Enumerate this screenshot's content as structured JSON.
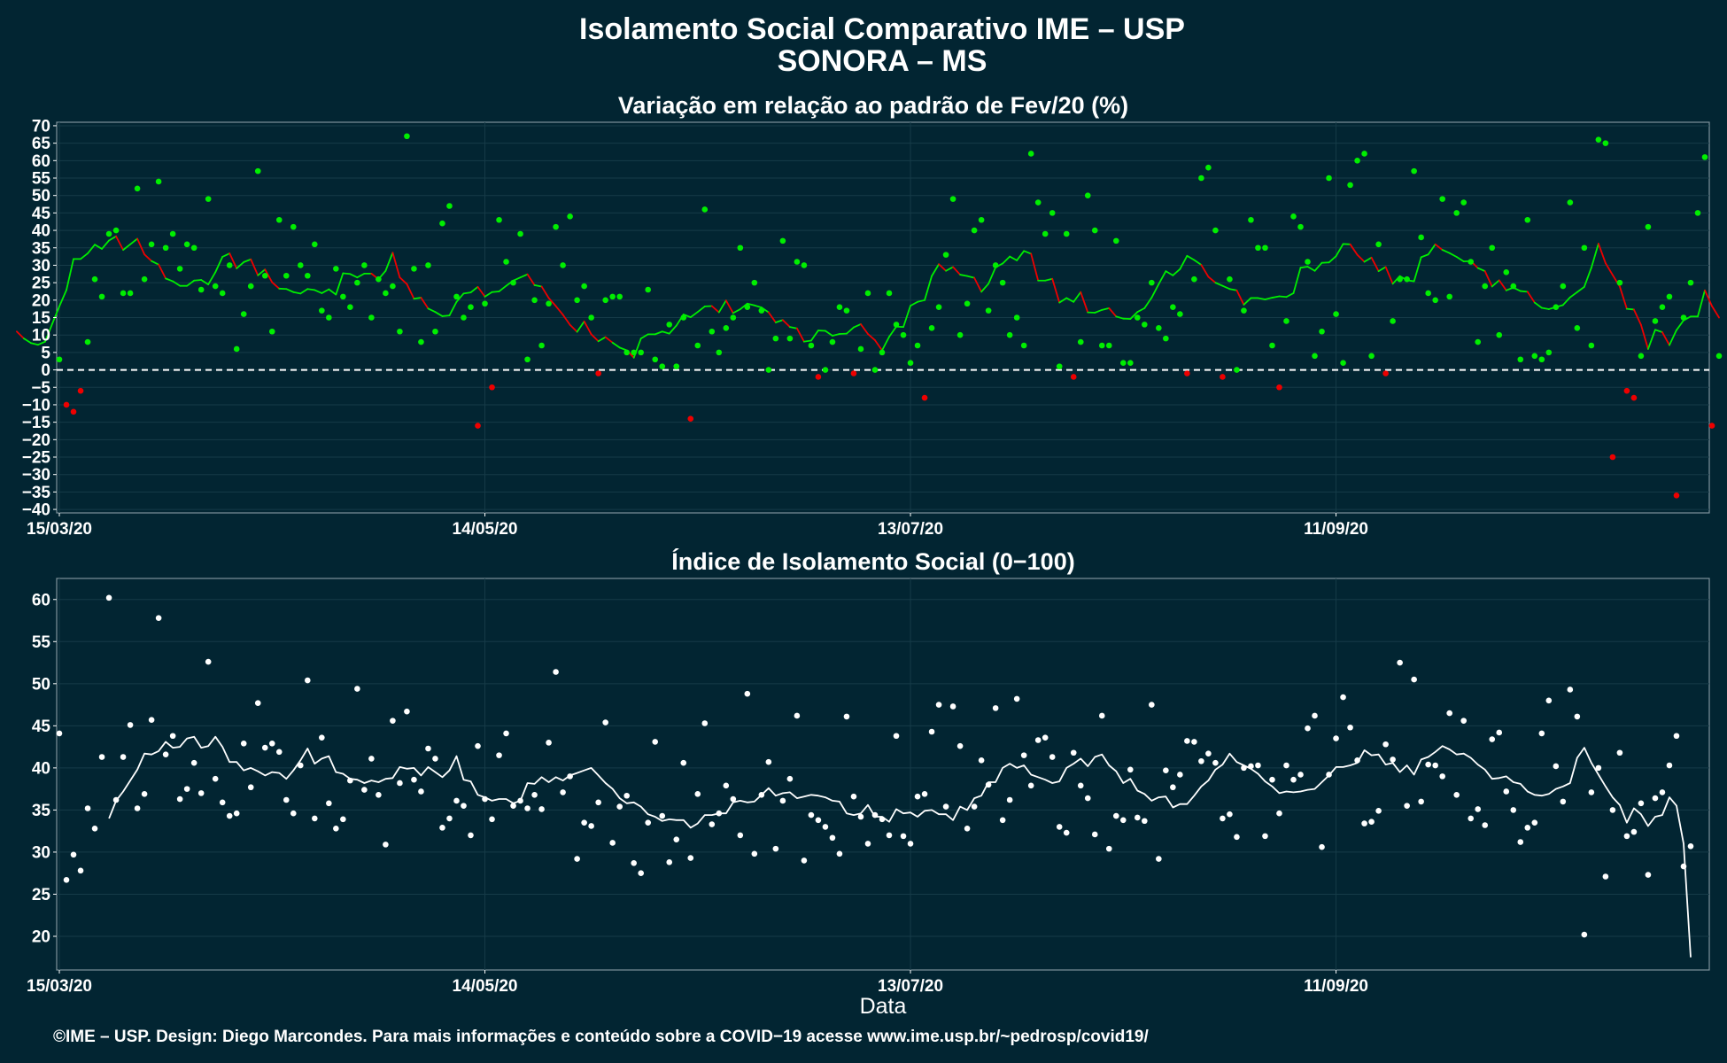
{
  "title": "Isolamento Social Comparativo IME – USP",
  "subtitle": "SONORA – MS",
  "caption": "©IME – USP. Design: Diego Marcondes. Para mais informações e conteúdo sobre a COVID−19 acesse www.ime.usp.br/~pedrosp/covid19/",
  "colors": {
    "background": "#022532",
    "panel_border": "#7f939b",
    "grid": "#163b48",
    "positive": "#00ee00",
    "negative": "#ee0000",
    "index": "#ffffff",
    "zero_line": "#ffffff"
  },
  "chart_data": [
    {
      "type": "scatter",
      "title": "Variação em relação ao padrão de Fev/20 (%)",
      "xlabel": "",
      "ylabel": "",
      "x_type": "date",
      "x_start": "2020-03-15",
      "x_end": "2020-11-02",
      "x_ticks": [
        {
          "date": "2020-03-15",
          "label": "15/03/20"
        },
        {
          "date": "2020-05-14",
          "label": "14/05/20"
        },
        {
          "date": "2020-07-13",
          "label": "13/07/20"
        },
        {
          "date": "2020-09-11",
          "label": "11/09/20"
        }
      ],
      "y_ticks": [
        70,
        65,
        60,
        55,
        50,
        45,
        40,
        35,
        30,
        25,
        20,
        15,
        10,
        5,
        0,
        -5,
        -10,
        -15,
        -20,
        -25,
        -30,
        -35,
        -40
      ],
      "ylim": [
        -41,
        71
      ],
      "grid": true,
      "legend": "none",
      "reference_line": 0,
      "series": [
        {
          "kind": "points",
          "values": [
            3,
            -10,
            -12,
            -6,
            8,
            26,
            21,
            39,
            40,
            22,
            22,
            52,
            26,
            36,
            54,
            35,
            39,
            29,
            36,
            35,
            23,
            49,
            24,
            22,
            30,
            6,
            16,
            24,
            57,
            27,
            11,
            43,
            27,
            41,
            30,
            27,
            36,
            17,
            15,
            29,
            21,
            18,
            25,
            30,
            15,
            26,
            22,
            24,
            11,
            67,
            29,
            8,
            30,
            11,
            42,
            47,
            21,
            15,
            18,
            -16,
            19,
            -5,
            43,
            31,
            25,
            39,
            3,
            20,
            7,
            19,
            41,
            30,
            44,
            20,
            24,
            15,
            -1,
            20,
            21,
            21,
            5,
            5,
            5,
            23,
            3,
            1,
            13,
            1,
            15,
            -14,
            7,
            46,
            11,
            5,
            12,
            15,
            35,
            18,
            25,
            17,
            0,
            9,
            37,
            9,
            31,
            30,
            7,
            -2,
            0,
            8,
            18,
            17,
            -1,
            6,
            22,
            0,
            5,
            22,
            13,
            10,
            2,
            7,
            -8,
            12,
            18,
            33,
            49,
            10,
            19,
            40,
            43,
            17,
            30,
            25,
            10,
            15,
            7,
            62,
            48,
            39,
            45,
            1,
            39,
            -2,
            8,
            50,
            40,
            7,
            7,
            37,
            2,
            2,
            15,
            13,
            25,
            12,
            9,
            18,
            16,
            -1,
            26,
            55,
            58,
            40,
            -2,
            26,
            0,
            17,
            43,
            35,
            35,
            7,
            -5,
            14,
            44,
            41,
            31,
            4,
            11,
            55,
            16,
            2,
            53,
            60,
            62,
            4,
            36,
            -1,
            14,
            26,
            26,
            57,
            38,
            22,
            20,
            49,
            21,
            45,
            48,
            31,
            8,
            24,
            35,
            10,
            28,
            24,
            3,
            43,
            4,
            3,
            5,
            18,
            24,
            48,
            12,
            35,
            7,
            66,
            65,
            -25,
            25,
            -6,
            -8,
            4,
            41,
            14,
            18,
            21,
            -36,
            15,
            25,
            45,
            61,
            -16,
            4
          ]
        },
        {
          "kind": "moving_average",
          "values": [
            11.0,
            9.0,
            7.7,
            7.2,
            8.1,
            13.2,
            18.2,
            22.9,
            31.8,
            31.8,
            33.4,
            35.9,
            34.7,
            37.1,
            38.3,
            34.4,
            36.0,
            37.6,
            33.1,
            31.2,
            30.2,
            26.2,
            25.4,
            24.1,
            24.1,
            25.6,
            25.8,
            24.5,
            28.0,
            32.4,
            33.4,
            29.1,
            30.9,
            31.7,
            27.1,
            28.8,
            25.1,
            23.3,
            23.2,
            22.3,
            21.9,
            23.2,
            22.9,
            22.0,
            23.1,
            21.6,
            27.7,
            27.5,
            26.5,
            27.6,
            27.6,
            26.0,
            28.4,
            33.6,
            26.5,
            24.6,
            20.4,
            20.7,
            17.6,
            16.6,
            15.4,
            15.6,
            19.5,
            21.9,
            22.2,
            23.8,
            21.0,
            22.3,
            22.5,
            24.1,
            25.6,
            26.5,
            27.4,
            24.3,
            23.9,
            20.6,
            18.3,
            15.8,
            12.9,
            10.9,
            13.9,
            10.2,
            8.2,
            9.4,
            7.8,
            6.4,
            5.6,
            3.5,
            9.0,
            10.2,
            10.2,
            11.0,
            10.4,
            12.7,
            15.9,
            15.1,
            16.6,
            18.2,
            18.3,
            16.5,
            19.9,
            16.3,
            17.4,
            19.0,
            18.5,
            17.9,
            16.5,
            13.6,
            14.3,
            12.3,
            11.9,
            8.1,
            8.4,
            11.3,
            11.2,
            9.8,
            10.3,
            10.4,
            12.2,
            13.1,
            10.3,
            8.5,
            5.6,
            9.5,
            12.4,
            12.3,
            18.4,
            19.5,
            20.0,
            26.9,
            30.3,
            28.4,
            29.5,
            27.3,
            26.9,
            26.4,
            22.4,
            24.7,
            29.4,
            30.5,
            32.5,
            31.4,
            34.1,
            33.3,
            25.6,
            25.6,
            26.1,
            19.3,
            20.6,
            19.5,
            22.3,
            16.5,
            16.4,
            17.2,
            17.7,
            15.3,
            14.7,
            14.6,
            16.6,
            17.7,
            20.7,
            24.6,
            28.3,
            27.1,
            28.9,
            32.7,
            31.5,
            30.1,
            26.7,
            25.0,
            24.1,
            23.2,
            22.8,
            18.7,
            20.6,
            20.6,
            20.2,
            20.7,
            21.1,
            20.9,
            22.0,
            29.3,
            29.6,
            28.4,
            30.7,
            30.8,
            32.6,
            36.1,
            36.0,
            33.0,
            31.0,
            32.2,
            28.3,
            29.5,
            24.7,
            26.9,
            25.7,
            25.4,
            32.3,
            33.1,
            36.0,
            34.4,
            33.5,
            32.4,
            31.1,
            31.2,
            29.2,
            28.3,
            23.9,
            25.7,
            22.8,
            23.6,
            22.6,
            22.4,
            19.3,
            17.8,
            17.4,
            18.0,
            18.6,
            20.8,
            22.3,
            23.8,
            29.3,
            36.2,
            30.6,
            27.2,
            23.9,
            17.5,
            17.3,
            12.9,
            6.0,
            11.5,
            10.8,
            7.1,
            11.4,
            14.2,
            15.3,
            15.3,
            22.8,
            18.3,
            15.0
          ]
        }
      ]
    },
    {
      "type": "scatter",
      "title": "Índice de Isolamento Social (0−100)",
      "xlabel": "Data",
      "ylabel": "",
      "x_type": "date",
      "x_start": "2020-03-15",
      "x_end": "2020-11-02",
      "x_ticks": [
        {
          "date": "2020-03-15",
          "label": "15/03/20"
        },
        {
          "date": "2020-05-14",
          "label": "14/05/20"
        },
        {
          "date": "2020-07-13",
          "label": "13/07/20"
        },
        {
          "date": "2020-09-11",
          "label": "11/09/20"
        }
      ],
      "y_ticks": [
        60,
        55,
        50,
        45,
        40,
        35,
        30,
        25,
        20
      ],
      "ylim": [
        16.0,
        62.5
      ],
      "grid": true,
      "legend": "none",
      "series": [
        {
          "kind": "points",
          "values": [
            44.1,
            26.7,
            29.7,
            27.8,
            35.2,
            32.8,
            41.3,
            60.2,
            36.2,
            41.3,
            45.1,
            35.2,
            36.9,
            45.7,
            57.8,
            41.6,
            43.8,
            36.3,
            37.5,
            40.6,
            37.0,
            52.6,
            38.7,
            35.9,
            34.3,
            34.6,
            42.9,
            37.7,
            47.7,
            42.4,
            42.9,
            41.9,
            36.2,
            34.6,
            40.3,
            50.4,
            34.0,
            43.6,
            35.8,
            32.8,
            33.9,
            38.5,
            49.4,
            37.4,
            41.1,
            36.8,
            30.9,
            45.6,
            38.2,
            46.7,
            38.6,
            37.2,
            42.3,
            41.1,
            32.9,
            34.0,
            36.1,
            35.5,
            32.0,
            42.6,
            36.3,
            33.9,
            41.5,
            44.1,
            35.5,
            36.1,
            35.2,
            36.8,
            35.1,
            43.0,
            51.4,
            37.1,
            39.0,
            29.2,
            33.5,
            33.1,
            35.9,
            45.4,
            31.1,
            35.4,
            36.7,
            28.7,
            27.5,
            33.5,
            43.1,
            34.3,
            28.8,
            31.5,
            40.6,
            29.3,
            36.9,
            45.3,
            33.3,
            34.6,
            37.9,
            36.3,
            32.0,
            48.8,
            29.8,
            36.8,
            40.7,
            30.4,
            36.1,
            38.7,
            46.2,
            29.0,
            34.4,
            33.8,
            33.0,
            31.7,
            29.8,
            46.1,
            36.6,
            34.2,
            31.0,
            34.4,
            33.9,
            32.0,
            43.8,
            31.9,
            31.0,
            36.6,
            36.9,
            44.3,
            47.5,
            35.4,
            47.3,
            42.6,
            32.8,
            35.4,
            40.9,
            38.0,
            47.1,
            33.8,
            36.2,
            48.2,
            41.5,
            37.9,
            43.3,
            43.6,
            41.3,
            33.0,
            32.3,
            41.8,
            37.9,
            36.4,
            32.1,
            46.2,
            30.4,
            34.3,
            33.8,
            39.8,
            34.1,
            33.7,
            47.5,
            29.2,
            39.7,
            37.7,
            39.2,
            43.2,
            43.1,
            40.8,
            41.7,
            40.6,
            34.0,
            34.5,
            31.8,
            40.0,
            40.2,
            40.3,
            31.9,
            38.6,
            34.6,
            40.3,
            38.6,
            39.2,
            44.7,
            46.2,
            30.6,
            39.2,
            43.5,
            48.4,
            44.8,
            40.9,
            33.4,
            33.6,
            34.9,
            42.8,
            41.0,
            52.5,
            35.5,
            50.5,
            36.0,
            40.4,
            40.3,
            39.0,
            46.5,
            36.8,
            45.6,
            34.0,
            35.1,
            33.2,
            43.4,
            44.2,
            37.2,
            35.0,
            31.2,
            32.9,
            33.5,
            44.1,
            48.0,
            40.2,
            36.0,
            49.3,
            46.1,
            20.2,
            37.1,
            40.0,
            27.1,
            35.0,
            41.8,
            31.9,
            32.4,
            35.8,
            27.3,
            36.4,
            37.1,
            40.3,
            43.8,
            28.3,
            30.7
          ]
        },
        {
          "kind": "moving_average",
          "values": [
            34.0,
            36.1,
            37.2,
            38.5,
            39.8,
            41.7,
            41.6,
            42.0,
            43.1,
            42.4,
            42.5,
            43.5,
            43.7,
            42.4,
            42.6,
            43.7,
            42.5,
            40.7,
            40.7,
            39.7,
            40.0,
            39.6,
            39.1,
            39.5,
            39.4,
            38.7,
            39.7,
            40.9,
            42.3,
            40.5,
            41.1,
            41.4,
            39.5,
            39.3,
            38.7,
            38.6,
            38.2,
            38.5,
            38.3,
            38.7,
            38.8,
            40.1,
            39.9,
            40.0,
            39.1,
            40.1,
            39.5,
            38.9,
            39.7,
            41.4,
            38.6,
            38.4,
            36.8,
            36.5,
            36.1,
            36.3,
            36.3,
            35.8,
            36.1,
            38.2,
            38.1,
            38.9,
            38.3,
            38.9,
            38.5,
            39.1,
            39.4,
            39.7,
            40.0,
            39.1,
            38.2,
            37.5,
            36.4,
            35.8,
            35.9,
            35.4,
            34.5,
            34.2,
            33.7,
            33.9,
            33.8,
            33.8,
            32.9,
            33.4,
            34.4,
            34.4,
            34.6,
            34.6,
            35.9,
            36.1,
            35.9,
            36.0,
            36.8,
            37.6,
            36.7,
            37.0,
            37.1,
            36.4,
            36.6,
            36.8,
            36.7,
            36.5,
            36.1,
            36.0,
            34.6,
            34.4,
            34.6,
            35.6,
            34.2,
            34.2,
            33.6,
            35.1,
            34.6,
            34.7,
            34.2,
            34.9,
            35.0,
            34.5,
            34.5,
            33.8,
            35.4,
            35.0,
            36.4,
            36.7,
            38.3,
            38.3,
            40.0,
            40.5,
            40.0,
            40.3,
            39.2,
            38.9,
            38.6,
            38.2,
            38.4,
            40.0,
            40.5,
            41.1,
            40.2,
            41.3,
            41.6,
            40.3,
            39.6,
            38.2,
            38.7,
            37.3,
            36.9,
            36.1,
            36.5,
            36.6,
            35.3,
            35.7,
            35.7,
            36.7,
            37.8,
            38.5,
            39.8,
            40.4,
            41.7,
            40.7,
            40.3,
            39.9,
            39.3,
            38.4,
            37.8,
            37.0,
            37.2,
            37.1,
            37.2,
            37.4,
            37.5,
            38.3,
            39.1,
            40.1,
            40.1,
            40.3,
            40.6,
            42.1,
            41.5,
            41.6,
            40.4,
            40.6,
            39.5,
            40.3,
            39.2,
            41.0,
            41.3,
            41.9,
            42.6,
            42.2,
            41.6,
            41.7,
            41.2,
            40.4,
            39.8,
            38.7,
            38.8,
            39.0,
            38.3,
            38.1,
            37.2,
            36.8,
            36.7,
            36.9,
            37.5,
            37.8,
            38.2,
            41.2,
            42.4,
            40.6,
            39.2,
            37.8,
            36.5,
            35.6,
            33.5,
            35.2,
            34.5,
            33.1,
            34.2,
            34.4,
            36.5,
            35.5,
            31.0,
            17.5
          ]
        }
      ]
    }
  ]
}
